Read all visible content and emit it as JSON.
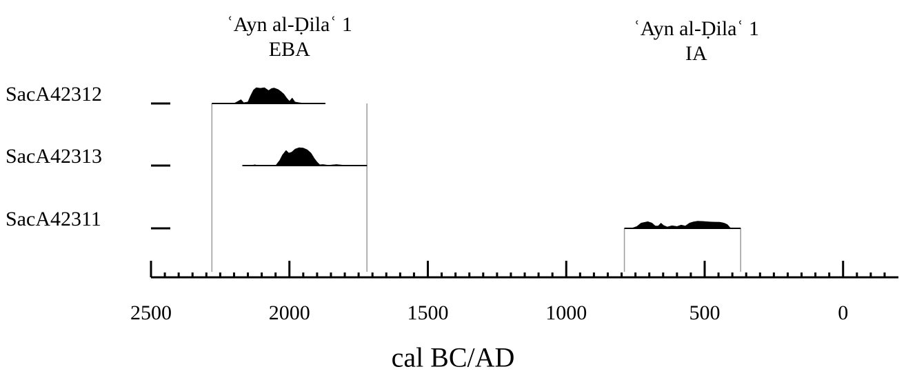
{
  "chart_data": {
    "type": "area",
    "xlabel": "cal BC/AD",
    "ylabel": "",
    "x_ticks": [
      2500,
      2000,
      1500,
      1000,
      500,
      0
    ],
    "xlim": [
      2500,
      -200
    ],
    "minor_tick_step": 50,
    "groups": [
      {
        "id": "eba",
        "title_line1": "ʿAyn al-Ḍilaʿ 1",
        "title_line2": "EBA",
        "range": [
          2280,
          1720
        ]
      },
      {
        "id": "ia",
        "title_line1": "ʿAyn al-Ḍilaʿ 1",
        "title_line2": "IA",
        "range": [
          790,
          370
        ]
      }
    ],
    "series": [
      {
        "name": "SacA42312",
        "group": "eba",
        "range": [
          2280,
          1870
        ],
        "density": [
          [
            2280,
            0
          ],
          [
            2220,
            0
          ],
          [
            2200,
            0.01
          ],
          [
            2190,
            0.1
          ],
          [
            2175,
            0.25
          ],
          [
            2165,
            0.05
          ],
          [
            2150,
            0.1
          ],
          [
            2140,
            0.5
          ],
          [
            2130,
            0.85
          ],
          [
            2120,
            1.0
          ],
          [
            2105,
            0.96
          ],
          [
            2090,
            1.0
          ],
          [
            2075,
            0.82
          ],
          [
            2065,
            0.95
          ],
          [
            2055,
            0.98
          ],
          [
            2040,
            0.88
          ],
          [
            2030,
            0.75
          ],
          [
            2020,
            0.6
          ],
          [
            2010,
            0.35
          ],
          [
            2000,
            0.15
          ],
          [
            1990,
            0.35
          ],
          [
            1980,
            0.1
          ],
          [
            1965,
            0.05
          ],
          [
            1950,
            0.02
          ],
          [
            1900,
            0
          ],
          [
            1870,
            0
          ]
        ]
      },
      {
        "name": "SacA42313",
        "group": "eba",
        "range": [
          2170,
          1720
        ],
        "density": [
          [
            2170,
            0
          ],
          [
            2140,
            0
          ],
          [
            2125,
            0.05
          ],
          [
            2112,
            0
          ],
          [
            2050,
            0
          ],
          [
            2035,
            0.3
          ],
          [
            2025,
            0.6
          ],
          [
            2012,
            0.85
          ],
          [
            2002,
            0.7
          ],
          [
            1992,
            0.75
          ],
          [
            1980,
            0.92
          ],
          [
            1965,
            1.0
          ],
          [
            1950,
            0.98
          ],
          [
            1935,
            0.88
          ],
          [
            1922,
            0.7
          ],
          [
            1910,
            0.4
          ],
          [
            1900,
            0.2
          ],
          [
            1890,
            0.05
          ],
          [
            1878,
            0.06
          ],
          [
            1860,
            0.02
          ],
          [
            1830,
            0.06
          ],
          [
            1810,
            0.03
          ],
          [
            1760,
            0.01
          ],
          [
            1720,
            0
          ]
        ]
      },
      {
        "name": "SacA42311",
        "group": "ia",
        "range": [
          790,
          370
        ],
        "density": [
          [
            790,
            0
          ],
          [
            760,
            0.05
          ],
          [
            745,
            0.2
          ],
          [
            730,
            0.55
          ],
          [
            718,
            0.62
          ],
          [
            705,
            0.7
          ],
          [
            690,
            0.55
          ],
          [
            678,
            0.25
          ],
          [
            668,
            0.25
          ],
          [
            658,
            0.55
          ],
          [
            648,
            0.3
          ],
          [
            635,
            0.15
          ],
          [
            618,
            0.28
          ],
          [
            600,
            0.2
          ],
          [
            585,
            0.35
          ],
          [
            570,
            0.25
          ],
          [
            555,
            0.55
          ],
          [
            540,
            0.68
          ],
          [
            525,
            0.75
          ],
          [
            505,
            0.72
          ],
          [
            485,
            0.68
          ],
          [
            465,
            0.65
          ],
          [
            445,
            0.64
          ],
          [
            430,
            0.55
          ],
          [
            418,
            0.4
          ],
          [
            408,
            0.08
          ],
          [
            400,
            0
          ],
          [
            370,
            0
          ]
        ]
      }
    ]
  }
}
